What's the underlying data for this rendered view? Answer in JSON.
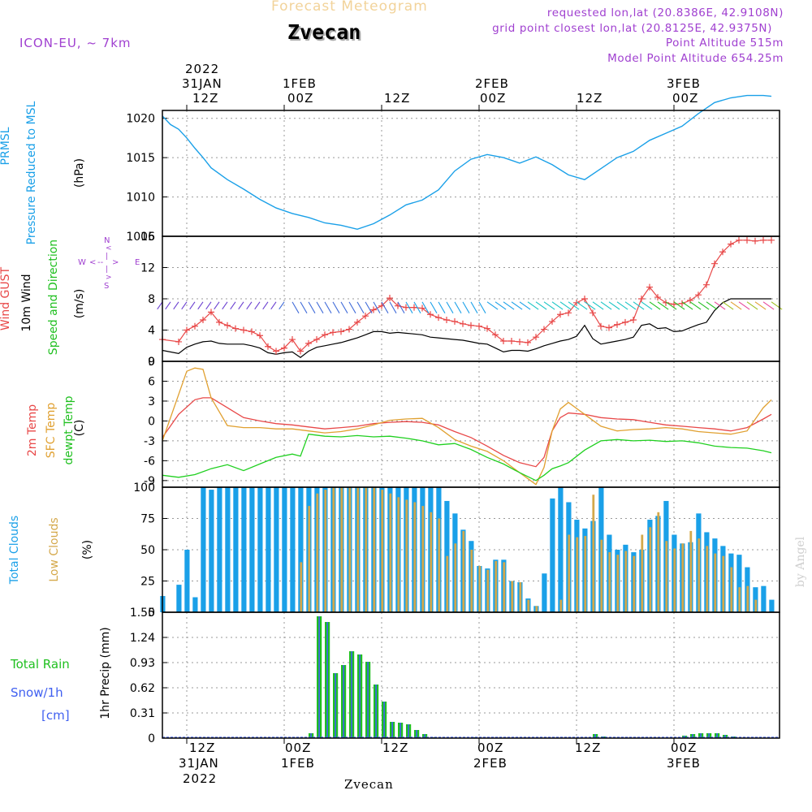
{
  "header": {
    "title": "Forecast Meteogram",
    "location": "Zvecan",
    "model": "ICON-EU, ~ 7km",
    "requested": "requested lon,lat (20.8386E, 42.9108N)",
    "grid_point": "grid point closest lon,lat (20.8125E, 42.9375N)",
    "point_altitude": "Point Altitude 515m",
    "model_altitude": "Model Point Altitude 654.25m"
  },
  "footer": {
    "location": "Zvecan",
    "credit": "by Angel"
  },
  "top_axis": [
    {
      "line1": "2022",
      "line2": "31JAN",
      "line3": "12Z"
    },
    {
      "line1": "",
      "line2": "1FEB",
      "line3": "00Z"
    },
    {
      "line1": "",
      "line2": "",
      "line3": "12Z"
    },
    {
      "line1": "",
      "line2": "2FEB",
      "line3": "00Z"
    },
    {
      "line1": "",
      "line2": "",
      "line3": "12Z"
    },
    {
      "line1": "",
      "line2": "3FEB",
      "line3": "00Z"
    }
  ],
  "bottom_axis": [
    {
      "line1": "12Z",
      "line2": "31JAN",
      "line3": "2022"
    },
    {
      "line1": "00Z",
      "line2": "1FEB",
      "line3": ""
    },
    {
      "line1": "12Z",
      "line2": "",
      "line3": ""
    },
    {
      "line1": "00Z",
      "line2": "2FEB",
      "line3": ""
    },
    {
      "line1": "12Z",
      "line2": "",
      "line3": ""
    },
    {
      "line1": "00Z",
      "line2": "3FEB",
      "line3": ""
    }
  ],
  "labels": {
    "prmsl": "PRMSL",
    "pressure_msl": "Pressure Reduced to MSL",
    "hpa": "(hPa)",
    "wind_gust": "Wind GUST",
    "wind10m": "10m Wind",
    "speed_dir": "Speed and Direction",
    "ms": "(m/s)",
    "compass_n": "N",
    "compass_s": "S",
    "compass_w": "W",
    "compass_e": "E",
    "temp2m": "2m Temp",
    "sfc_temp": "SFC Temp",
    "dewpt": "dewpt Temp",
    "c_unit": "(C)",
    "total_clouds": "Total Clouds",
    "low_clouds": "Low Clouds",
    "pct": "(%)",
    "total_rain": "Total  Rain",
    "snow": "Snow/1h",
    "cm": "[cm]",
    "precip_unit": "1hr Precip (mm)"
  },
  "colors": {
    "pressure": "#1aa0e8",
    "gust": "#e84848",
    "wind": "#000000",
    "temp2m": "#e84848",
    "sfc": "#e0a030",
    "dewpt": "#20d020",
    "total_cloud": "#1aa0e8",
    "low_cloud": "#d4a84a",
    "rain": "#20c020",
    "snow": "#4060f0",
    "label_purple": "#a040d0"
  },
  "chart_data": [
    {
      "type": "line",
      "name": "pressure",
      "title": "PRMSL Pressure Reduced to MSL",
      "ylabel": "(hPa)",
      "ylim": [
        1005,
        1021
      ],
      "yticks": [
        1005,
        1010,
        1015,
        1020
      ],
      "x_start": 0,
      "x_end": 76,
      "series": [
        {
          "name": "Pressure",
          "x": [
            0,
            1,
            2,
            3,
            4,
            5,
            6,
            8,
            10,
            12,
            14,
            16,
            18,
            20,
            22,
            24,
            26,
            28,
            30,
            32,
            34,
            36,
            38,
            40,
            42,
            44,
            46,
            48,
            50,
            52,
            54,
            56,
            58,
            60,
            62,
            64,
            66,
            68,
            70,
            72,
            74,
            75
          ],
          "values": [
            1020.3,
            1019.2,
            1018.6,
            1017.5,
            1016.2,
            1015.0,
            1013.7,
            1012.2,
            1011.0,
            1009.7,
            1008.6,
            1007.9,
            1007.4,
            1006.7,
            1006.4,
            1005.9,
            1006.6,
            1007.7,
            1009.0,
            1009.6,
            1010.9,
            1013.3,
            1014.8,
            1015.4,
            1015.0,
            1014.3,
            1015.1,
            1014.1,
            1012.8,
            1012.2,
            1013.6,
            1015.0,
            1015.8,
            1017.2,
            1018.1,
            1019.0,
            1020.6,
            1022.0,
            1022.6,
            1023.1,
            1022.9,
            1022.8
          ]
        }
      ]
    },
    {
      "type": "line",
      "name": "wind",
      "title": "Wind GUST / 10m Wind Speed and Direction",
      "ylabel": "(m/s)",
      "ylim": [
        0,
        16
      ],
      "yticks": [
        0,
        4,
        8,
        12,
        16
      ],
      "x_start": 0,
      "x_end": 76,
      "series": [
        {
          "name": "Wind GUST",
          "x": [
            0,
            2,
            3,
            4,
            5,
            6,
            7,
            8,
            9,
            10,
            11,
            12,
            13,
            14,
            15,
            16,
            17,
            18,
            19,
            20,
            21,
            22,
            23,
            24,
            25,
            26,
            27,
            28,
            29,
            30,
            31,
            32,
            33,
            34,
            35,
            36,
            37,
            38,
            39,
            40,
            41,
            42,
            43,
            44,
            45,
            46,
            47,
            48,
            49,
            50,
            51,
            52,
            53,
            54,
            55,
            56,
            57,
            58,
            59,
            60,
            61,
            62,
            63,
            64,
            65,
            66,
            67,
            68,
            69,
            70,
            71,
            72,
            73,
            74,
            75
          ],
          "values": [
            2.8,
            2.5,
            4.0,
            4.5,
            5.3,
            6.3,
            5.0,
            4.6,
            4.2,
            4.0,
            3.8,
            3.3,
            1.9,
            1.3,
            1.7,
            2.8,
            1.3,
            2.3,
            2.8,
            3.4,
            3.7,
            3.8,
            4.1,
            5.0,
            5.8,
            6.6,
            7.1,
            8.1,
            7.1,
            6.9,
            6.9,
            6.8,
            6.0,
            5.6,
            5.3,
            5.1,
            4.8,
            4.6,
            4.5,
            4.2,
            3.4,
            2.6,
            2.6,
            2.5,
            2.4,
            3.1,
            4.1,
            5.1,
            6.0,
            6.2,
            7.5,
            8.0,
            6.2,
            4.5,
            4.3,
            4.7,
            5.0,
            5.3,
            8.0,
            9.5,
            8.2,
            7.5,
            7.3,
            7.4,
            7.8,
            8.5,
            9.8,
            12.5,
            14.0,
            15.0,
            15.5,
            15.5,
            15.4,
            15.5,
            15.5
          ]
        },
        {
          "name": "10m Wind",
          "x": [
            0,
            2,
            3,
            4,
            5,
            6,
            7,
            8,
            9,
            10,
            11,
            12,
            13,
            14,
            15,
            16,
            17,
            18,
            19,
            20,
            21,
            22,
            23,
            24,
            25,
            26,
            27,
            28,
            29,
            30,
            31,
            32,
            33,
            34,
            35,
            36,
            37,
            38,
            39,
            40,
            41,
            42,
            43,
            44,
            45,
            46,
            47,
            48,
            49,
            50,
            51,
            52,
            53,
            54,
            55,
            56,
            57,
            58,
            59,
            60,
            61,
            62,
            63,
            64,
            65,
            66,
            67,
            68,
            69,
            70,
            71,
            72,
            73,
            74,
            75
          ],
          "values": [
            1.4,
            1.0,
            1.8,
            2.2,
            2.5,
            2.6,
            2.3,
            2.2,
            2.2,
            2.2,
            2.0,
            1.7,
            1.1,
            0.9,
            1.1,
            1.2,
            0.5,
            1.3,
            1.8,
            2.0,
            2.2,
            2.4,
            2.7,
            3.0,
            3.4,
            3.8,
            3.8,
            3.6,
            3.7,
            3.6,
            3.5,
            3.4,
            3.1,
            3.0,
            2.9,
            2.8,
            2.7,
            2.5,
            2.3,
            2.2,
            1.7,
            1.2,
            1.4,
            1.4,
            1.3,
            1.6,
            2.0,
            2.3,
            2.6,
            2.8,
            3.2,
            4.6,
            2.9,
            2.2,
            2.4,
            2.6,
            2.8,
            3.1,
            4.6,
            4.8,
            4.2,
            4.3,
            3.8,
            3.9,
            4.3,
            4.7,
            5.0,
            6.5,
            7.5,
            8.0,
            8.0,
            8.0,
            8.0,
            8.0,
            8.0
          ]
        }
      ]
    },
    {
      "type": "line",
      "name": "temperature",
      "title": "2m Temp / SFC Temp / dewpt Temp",
      "ylabel": "(C)",
      "ylim": [
        -10,
        9
      ],
      "yticks": [
        -9,
        -6,
        -3,
        0,
        3,
        6,
        9
      ],
      "x_start": 0,
      "x_end": 76,
      "series": [
        {
          "name": "2m Temp",
          "x": [
            0,
            2,
            4,
            5,
            6,
            8,
            10,
            12,
            14,
            16,
            18,
            20,
            22,
            24,
            26,
            28,
            30,
            32,
            34,
            36,
            38,
            40,
            42,
            44,
            46,
            47,
            48,
            49,
            50,
            52,
            54,
            56,
            58,
            60,
            62,
            64,
            66,
            68,
            70,
            72,
            74,
            75
          ],
          "values": [
            -2.5,
            1.0,
            3.2,
            3.5,
            3.5,
            2.0,
            0.5,
            0,
            -0.4,
            -0.6,
            -0.9,
            -1.2,
            -1.0,
            -0.8,
            -0.4,
            -0.2,
            -0.1,
            -0.2,
            -0.6,
            -1.6,
            -2.5,
            -3.8,
            -5.2,
            -6.3,
            -6.9,
            -5.5,
            -1.5,
            0.5,
            1.2,
            1.0,
            0.5,
            0.3,
            0.2,
            -0.2,
            -0.6,
            -0.8,
            -1.0,
            -1.2,
            -1.5,
            -1.0,
            0.3,
            1.0
          ]
        },
        {
          "name": "SFC Temp",
          "x": [
            0,
            2,
            3,
            4,
            5,
            6,
            8,
            10,
            12,
            14,
            16,
            18,
            20,
            22,
            24,
            26,
            28,
            30,
            32,
            34,
            36,
            38,
            40,
            42,
            44,
            46,
            47,
            48,
            49,
            50,
            52,
            54,
            56,
            58,
            60,
            62,
            64,
            66,
            68,
            70,
            72,
            74,
            75
          ],
          "values": [
            -3.0,
            4.0,
            7.5,
            8.0,
            7.8,
            3.5,
            -0.7,
            -1.0,
            -1.0,
            -1.2,
            -1.2,
            -1.5,
            -1.8,
            -1.6,
            -1.2,
            -0.6,
            0.1,
            0.3,
            0.4,
            -1.0,
            -2.8,
            -3.8,
            -4.6,
            -6.0,
            -7.8,
            -9.6,
            -7.0,
            -1.5,
            1.8,
            2.8,
            1.0,
            -0.8,
            -1.5,
            -1.3,
            -1.2,
            -1.0,
            -1.2,
            -1.6,
            -1.8,
            -2.0,
            -1.5,
            2.0,
            3.2
          ]
        },
        {
          "name": "dewpt Temp",
          "x": [
            0,
            2,
            4,
            6,
            8,
            10,
            12,
            14,
            16,
            17,
            18,
            20,
            22,
            24,
            26,
            28,
            30,
            32,
            34,
            36,
            38,
            40,
            42,
            44,
            46,
            47,
            48,
            49,
            50,
            52,
            54,
            56,
            58,
            60,
            62,
            64,
            66,
            68,
            70,
            72,
            74,
            75
          ],
          "values": [
            -8.2,
            -8.5,
            -8.1,
            -7.2,
            -6.6,
            -7.5,
            -6.5,
            -5.5,
            -5.0,
            -5.3,
            -2.0,
            -2.3,
            -2.4,
            -2.2,
            -2.4,
            -2.3,
            -2.6,
            -3.0,
            -3.6,
            -3.4,
            -4.3,
            -5.5,
            -6.5,
            -7.8,
            -9.0,
            -8.2,
            -7.2,
            -6.8,
            -6.3,
            -4.4,
            -3.0,
            -2.8,
            -3.0,
            -2.9,
            -3.1,
            -3.0,
            -3.3,
            -3.8,
            -4.0,
            -4.1,
            -4.5,
            -4.8
          ]
        }
      ]
    },
    {
      "type": "bar",
      "name": "clouds",
      "title": "Total Clouds / Low Clouds",
      "ylabel": "(%)",
      "ylim": [
        0,
        100
      ],
      "yticks": [
        0,
        25,
        50,
        75,
        100
      ],
      "x_start": 0,
      "x_end": 76,
      "series": [
        {
          "name": "Total Clouds",
          "values": [
            13,
            0,
            22,
            50,
            12,
            100,
            98,
            100,
            100,
            100,
            100,
            100,
            100,
            100,
            100,
            100,
            100,
            100,
            100,
            100,
            100,
            100,
            100,
            100,
            100,
            100,
            100,
            100,
            100,
            100,
            100,
            100,
            100,
            100,
            100,
            89,
            79,
            66,
            57,
            37,
            35,
            42,
            42,
            25,
            24,
            11,
            5,
            31,
            91,
            100,
            88,
            74,
            67,
            73,
            100,
            62,
            50,
            54,
            48,
            50,
            74,
            77,
            89,
            62,
            55,
            56,
            79,
            64,
            59,
            53,
            47,
            46,
            36,
            20,
            21,
            10
          ]
        },
        {
          "name": "Low Clouds",
          "values": [
            0,
            0,
            0,
            0,
            0,
            0,
            0,
            0,
            0,
            0,
            0,
            0,
            0,
            0,
            0,
            0,
            0,
            40,
            85,
            95,
            98,
            100,
            100,
            100,
            100,
            100,
            100,
            98,
            95,
            92,
            90,
            88,
            85,
            80,
            75,
            45,
            55,
            65,
            50,
            37,
            34,
            41,
            40,
            25,
            24,
            10,
            5,
            0,
            0,
            10,
            62,
            60,
            61,
            94,
            58,
            48,
            46,
            49,
            45,
            62,
            68,
            80,
            57,
            51,
            55,
            65,
            59,
            53,
            47,
            45,
            36,
            20,
            21,
            10,
            0,
            0
          ]
        }
      ]
    },
    {
      "type": "bar",
      "name": "precipitation",
      "title": "Total Rain / Snow/1h",
      "ylabel": "1hr Precip (mm)",
      "ylim": [
        0,
        1.55
      ],
      "yticks": [
        0,
        0.31,
        0.62,
        0.93,
        1.24,
        1.55
      ],
      "x_start": 0,
      "x_end": 76,
      "series": [
        {
          "name": "Total Rain",
          "x": [
            18,
            19,
            20,
            21,
            22,
            23,
            24,
            25,
            26,
            27,
            28,
            29,
            30,
            31,
            32,
            33,
            38,
            53,
            54,
            64,
            65,
            66,
            67,
            68,
            69,
            70
          ],
          "values": [
            0.06,
            1.5,
            1.43,
            0.8,
            0.9,
            1.07,
            1.03,
            0.94,
            0.66,
            0.45,
            0.2,
            0.19,
            0.17,
            0.1,
            0.05,
            0.01,
            0.01,
            0.05,
            0.02,
            0.03,
            0.05,
            0.06,
            0.06,
            0.06,
            0.04,
            0.02
          ]
        }
      ]
    }
  ]
}
